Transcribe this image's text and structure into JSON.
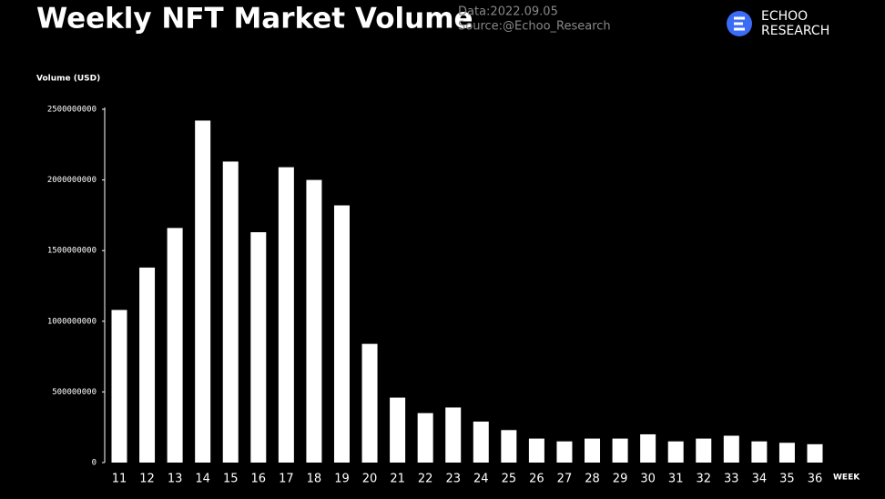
{
  "chart_data": {
    "type": "bar",
    "title": "Weekly NFT Market Volume",
    "subtitle": "Data:2022.09.05",
    "source": "Source:@Echoo_Research",
    "logo": [
      "ECHOO",
      "RESEARCH"
    ],
    "y_label": "Volume (USD)",
    "x_label": "WEEK",
    "categories": [
      "11",
      "12",
      "13",
      "14",
      "15",
      "16",
      "17",
      "18",
      "19",
      "20",
      "21",
      "22",
      "23",
      "24",
      "25",
      "26",
      "27",
      "28",
      "29",
      "30",
      "31",
      "32",
      "33",
      "34",
      "35",
      "36"
    ],
    "values": [
      1080000000,
      1380000000,
      1660000000,
      2420000000,
      2130000000,
      1630000000,
      2090000000,
      2000000000,
      1820000000,
      840000000,
      460000000,
      350000000,
      390000000,
      290000000,
      230000000,
      170000000,
      150000000,
      170000000,
      170000000,
      200000000,
      150000000,
      170000000,
      190000000,
      150000000,
      140000000,
      130000000
    ],
    "color": "#ffffff",
    "ylim": [
      0,
      2500000000
    ],
    "yticks": [
      0,
      500000000,
      1000000000,
      1500000000,
      2000000000,
      2500000000
    ],
    "grid": false
  }
}
